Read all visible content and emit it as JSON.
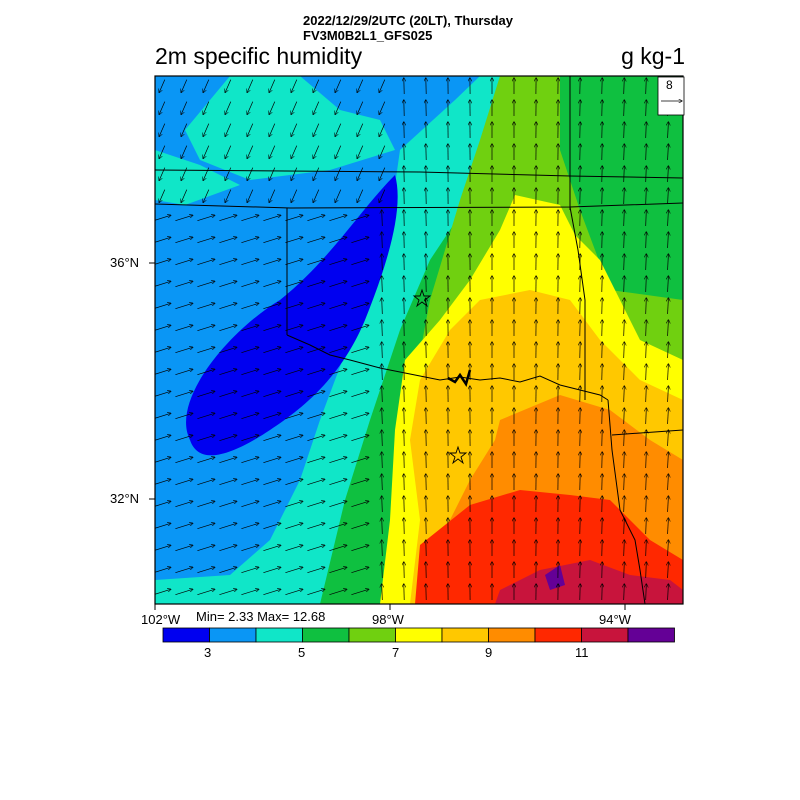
{
  "header": {
    "line1": "2022/12/29/2UTC (20LT), Thursday",
    "line2": "FV3M0B2L1_GFS025"
  },
  "title": {
    "left": "2m specific humidity",
    "right": "g kg-1"
  },
  "axes": {
    "y_ticks": [
      "36°N",
      "32°N"
    ],
    "x_ticks": [
      "102°W",
      "98°W",
      "94°W"
    ]
  },
  "stats": "Min= 2.33 Max= 12.68",
  "vector_reference": {
    "label": "8"
  },
  "colorbar": {
    "colors": [
      "#0000f0",
      "#0a96f5",
      "#10e6c8",
      "#0fc040",
      "#70d010",
      "#ffff00",
      "#ffc800",
      "#ff8c00",
      "#ff2800",
      "#c8143c",
      "#640096"
    ],
    "labels": [
      "3",
      "5",
      "7",
      "9",
      "11"
    ]
  },
  "map": {
    "markers": [
      "star",
      "star"
    ],
    "colors": {
      "border": "#000000"
    }
  }
}
